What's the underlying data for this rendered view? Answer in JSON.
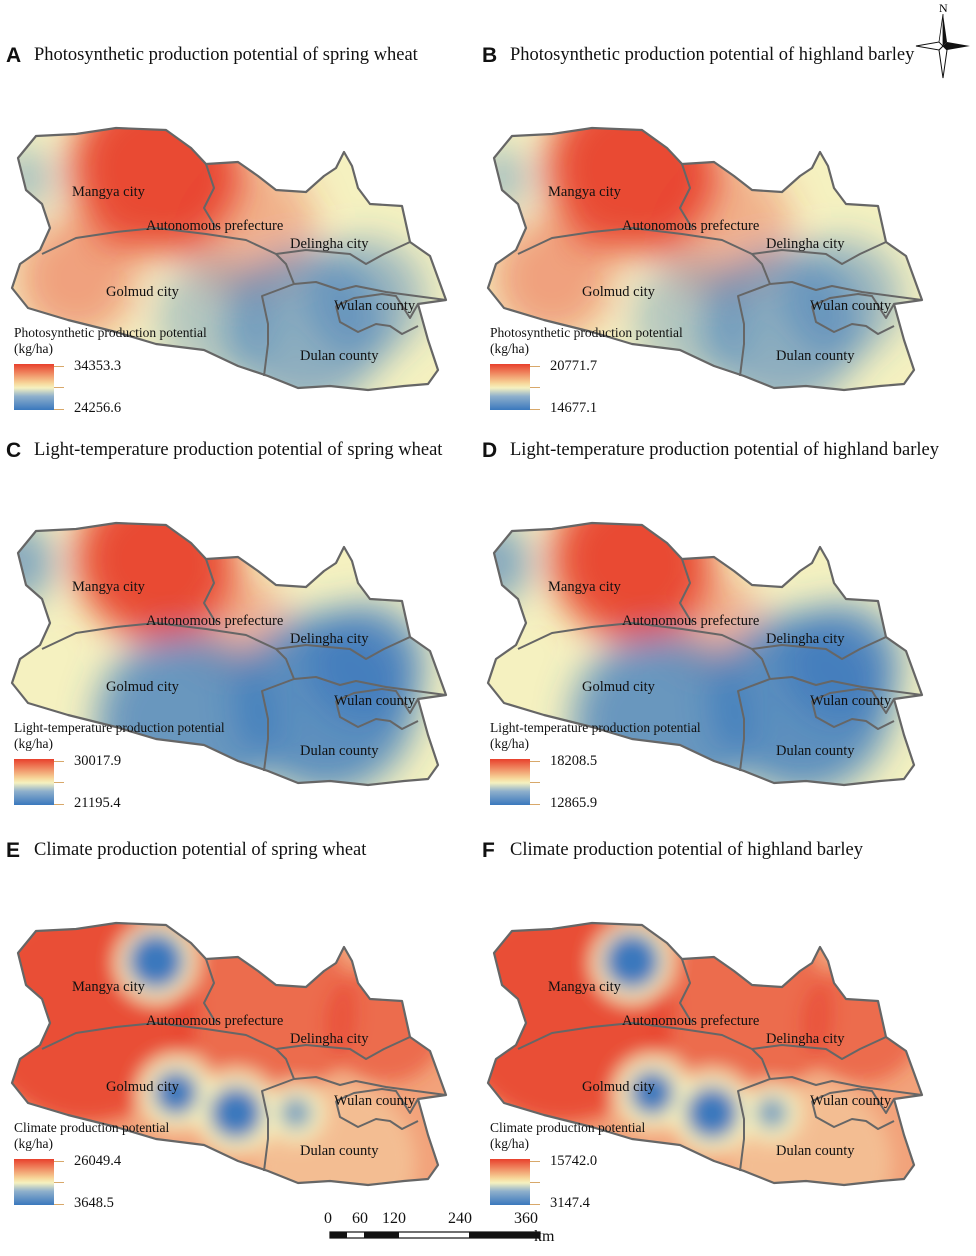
{
  "panels": [
    {
      "id": "A",
      "title": "Photosynthetic production potential of spring wheat",
      "legend_title": "Photosynthetic production potential",
      "legend_unit": "(kg/ha)",
      "max": "34353.3",
      "min": "24256.6",
      "map": "photo"
    },
    {
      "id": "B",
      "title": "Photosynthetic production potential of highland barley",
      "legend_title": "Photosynthetic production potential",
      "legend_unit": "(kg/ha)",
      "max": "20771.7",
      "min": "14677.1",
      "map": "photo"
    },
    {
      "id": "C",
      "title": "Light-temperature production potential of spring wheat",
      "legend_title": "Light-temperature production potential",
      "legend_unit": "(kg/ha)",
      "max": "30017.9",
      "min": "21195.4",
      "map": "light"
    },
    {
      "id": "D",
      "title": "Light-temperature production potential of highland barley",
      "legend_title": "Light-temperature production potential",
      "legend_unit": "(kg/ha)",
      "max": "18208.5",
      "min": "12865.9",
      "map": "light"
    },
    {
      "id": "E",
      "title": "Climate production potential of spring wheat",
      "legend_title": "Climate production potential",
      "legend_unit": "(kg/ha)",
      "max": "26049.4",
      "min": "3648.5",
      "map": "climate"
    },
    {
      "id": "F",
      "title": "Climate production potential of highland barley",
      "legend_title": "Climate production potential",
      "legend_unit": "(kg/ha)",
      "max": "15742.0",
      "min": "3147.4",
      "map": "climate"
    }
  ],
  "regions": {
    "mangya": "Mangya city",
    "autonomous": "Autonomous prefecture",
    "delingha": "Delingha city",
    "golmud": "Golmud city",
    "wulan": "Wulan county",
    "dulan": "Dulan county"
  },
  "north_label": "N",
  "scale": {
    "labels": [
      "0",
      "60",
      "120",
      "240",
      "360"
    ],
    "unit": "km"
  },
  "colors": {
    "high": "#e8402c",
    "mid": "#f5f1c0",
    "low": "#3a78bd",
    "border": "#666666"
  }
}
